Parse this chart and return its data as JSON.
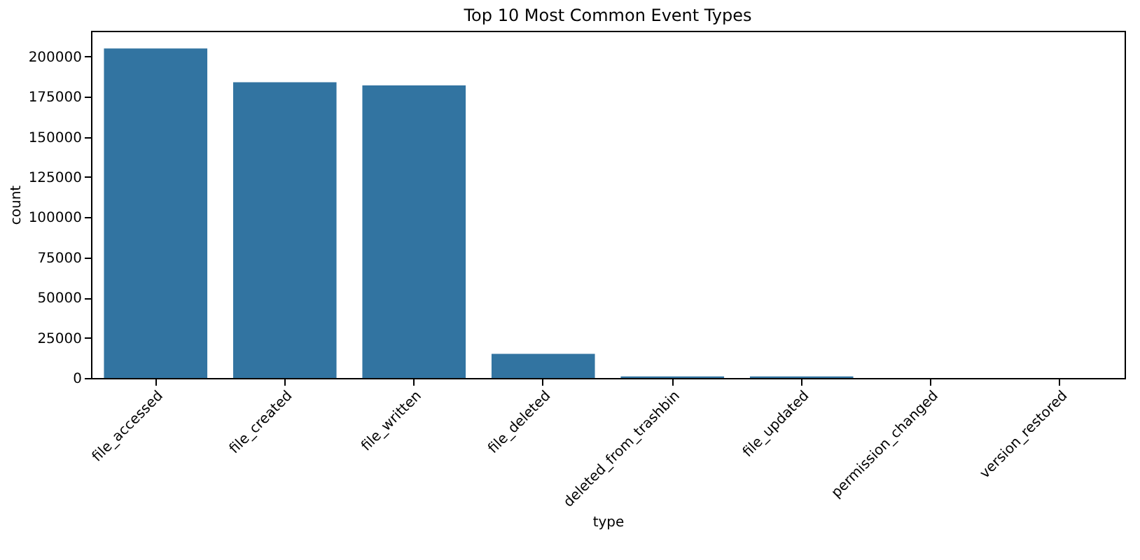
{
  "chart_data": {
    "type": "bar",
    "title": "Top 10 Most Common Event Types",
    "xlabel": "type",
    "ylabel": "count",
    "categories": [
      "file_accessed",
      "file_created",
      "file_written",
      "file_deleted",
      "deleted_from_trashbin",
      "file_updated",
      "permission_changed",
      "version_restored"
    ],
    "values": [
      205000,
      184000,
      182000,
      15000,
      1000,
      1000,
      0,
      0
    ],
    "color": "#3274a1",
    "ylim": [
      0,
      216000
    ],
    "yticks": [
      0,
      25000,
      50000,
      75000,
      100000,
      125000,
      150000,
      175000,
      200000
    ],
    "grid": false
  }
}
